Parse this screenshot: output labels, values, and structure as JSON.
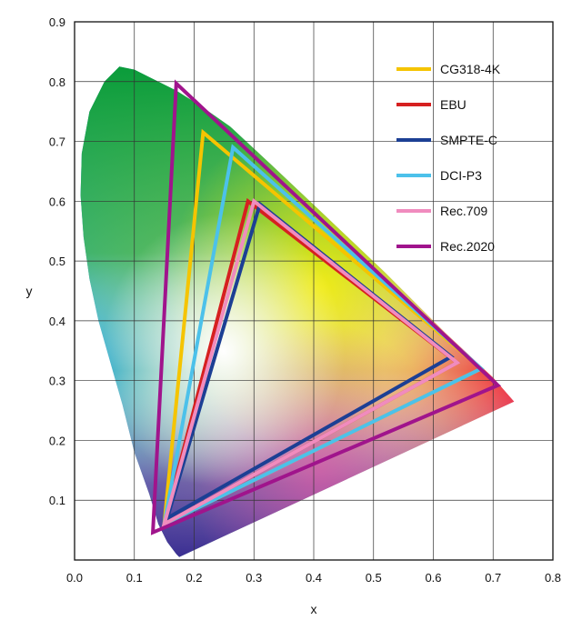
{
  "chart_data": {
    "type": "scatter",
    "title": "",
    "xlabel": "x",
    "ylabel": "y",
    "xlim": [
      0.0,
      0.8
    ],
    "ylim": [
      0.0,
      0.9
    ],
    "x_ticks": [
      "0.0",
      "0.1",
      "0.2",
      "0.3",
      "0.4",
      "0.5",
      "0.6",
      "0.7",
      "0.8"
    ],
    "y_ticks": [
      "0.1",
      "0.2",
      "0.3",
      "0.4",
      "0.5",
      "0.6",
      "0.7",
      "0.8",
      "0.9"
    ],
    "grid": true,
    "legend_position": "top-right",
    "locus": [
      [
        0.175,
        0.005
      ],
      [
        0.17,
        0.01
      ],
      [
        0.155,
        0.03
      ],
      [
        0.14,
        0.06
      ],
      [
        0.125,
        0.11
      ],
      [
        0.1,
        0.18
      ],
      [
        0.08,
        0.26
      ],
      [
        0.06,
        0.33
      ],
      [
        0.04,
        0.4
      ],
      [
        0.025,
        0.47
      ],
      [
        0.015,
        0.54
      ],
      [
        0.01,
        0.61
      ],
      [
        0.012,
        0.68
      ],
      [
        0.025,
        0.75
      ],
      [
        0.05,
        0.8
      ],
      [
        0.075,
        0.825
      ],
      [
        0.1,
        0.82
      ],
      [
        0.13,
        0.805
      ],
      [
        0.17,
        0.785
      ],
      [
        0.21,
        0.76
      ],
      [
        0.26,
        0.725
      ],
      [
        0.33,
        0.66
      ],
      [
        0.42,
        0.575
      ],
      [
        0.52,
        0.48
      ],
      [
        0.62,
        0.38
      ],
      [
        0.7,
        0.305
      ],
      [
        0.735,
        0.265
      ]
    ],
    "series": [
      {
        "name": "CG318-4K",
        "color": "#f5c400",
        "points": [
          [
            0.68,
            0.32
          ],
          [
            0.215,
            0.715
          ],
          [
            0.15,
            0.06
          ]
        ]
      },
      {
        "name": "EBU",
        "color": "#d62020",
        "points": [
          [
            0.64,
            0.33
          ],
          [
            0.29,
            0.6
          ],
          [
            0.15,
            0.06
          ]
        ]
      },
      {
        "name": "SMPTE-C",
        "color": "#1c3f94",
        "points": [
          [
            0.63,
            0.34
          ],
          [
            0.31,
            0.595
          ],
          [
            0.155,
            0.07
          ]
        ]
      },
      {
        "name": "DCI-P3",
        "color": "#4cc1ea",
        "points": [
          [
            0.68,
            0.32
          ],
          [
            0.265,
            0.69
          ],
          [
            0.15,
            0.06
          ]
        ]
      },
      {
        "name": "Rec.709",
        "color": "#f08cbe",
        "points": [
          [
            0.64,
            0.33
          ],
          [
            0.3,
            0.6
          ],
          [
            0.15,
            0.06
          ]
        ]
      },
      {
        "name": "Rec.2020",
        "color": "#a0148c",
        "points": [
          [
            0.708,
            0.292
          ],
          [
            0.17,
            0.797
          ],
          [
            0.131,
            0.046
          ]
        ]
      }
    ]
  }
}
